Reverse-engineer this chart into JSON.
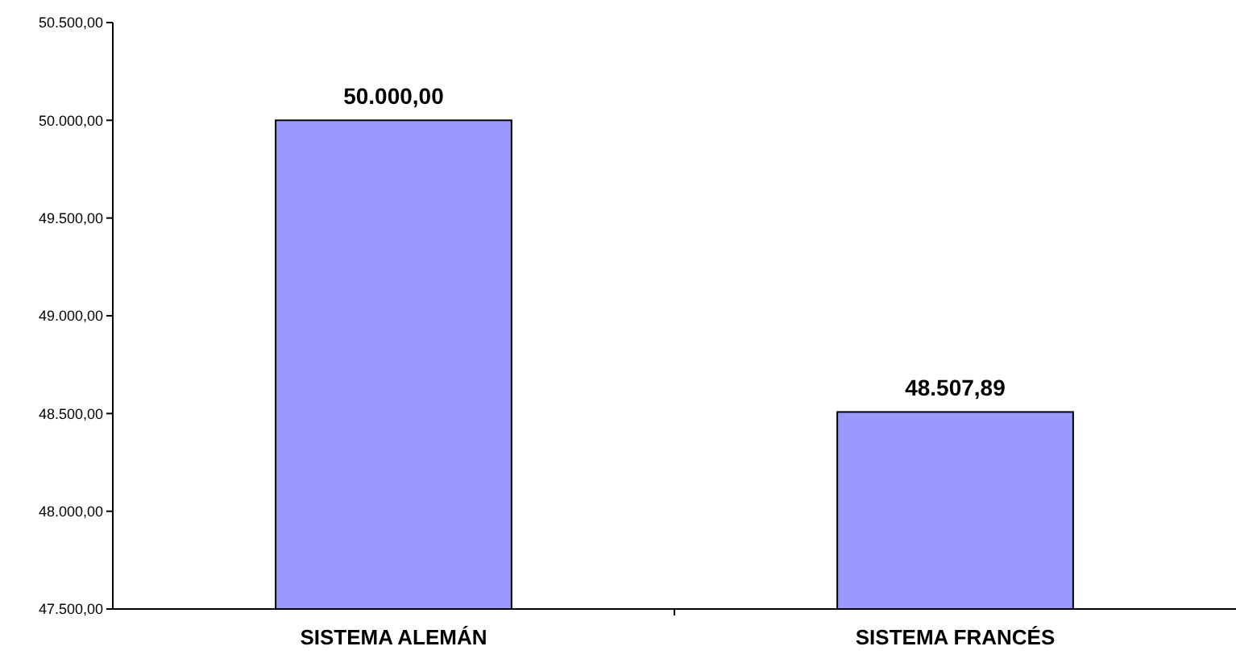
{
  "chart_data": {
    "type": "bar",
    "categories": [
      "SISTEMA ALEMÁN",
      "SISTEMA FRANCÉS"
    ],
    "values": [
      50000,
      48507.89
    ],
    "color": "#9999ff",
    "value_labels": [
      "50.000,00",
      "48.507,89"
    ],
    "ylim": [
      47500,
      50500
    ],
    "yticks": [
      {
        "value": 47500,
        "label": "47.500,00"
      },
      {
        "value": 48000,
        "label": "48.000,00"
      },
      {
        "value": 48500,
        "label": "48.500,00"
      },
      {
        "value": 49000,
        "label": "49.000,00"
      },
      {
        "value": 49500,
        "label": "49.500,00"
      },
      {
        "value": 50000,
        "label": "50.000,00"
      },
      {
        "value": 50500,
        "label": "50.500,00"
      }
    ],
    "grid": false
  }
}
